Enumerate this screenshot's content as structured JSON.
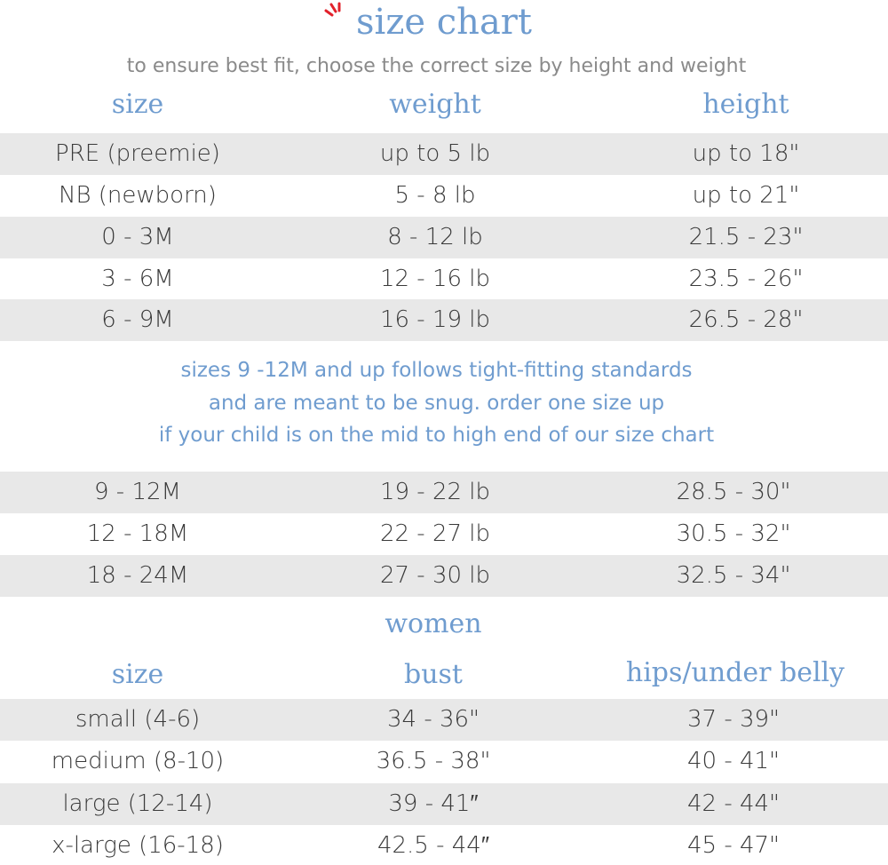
{
  "title": "size chart",
  "subtitle": "to ensure best fit, choose the correct size by height and weight",
  "colors": {
    "accent": "#6f9ccf",
    "band": "#e8e8e8",
    "burst": "#e2212b"
  },
  "baby_headers": {
    "size": "size",
    "weight": "weight",
    "height": "height"
  },
  "baby_rows_a": [
    {
      "size": "PRE (preemie)",
      "weight": "up to 5 lb",
      "height": "up to 18\""
    },
    {
      "size": "NB (newborn)",
      "weight": "5 - 8 lb",
      "height": "up to 21\""
    },
    {
      "size": "0 - 3M",
      "weight": "8 - 12 lb",
      "height": "21.5 - 23\""
    },
    {
      "size": "3 - 6M",
      "weight": "12 - 16 lb",
      "height": "23.5 - 26\""
    },
    {
      "size": "6 - 9M",
      "weight": "16 - 19 lb",
      "height": "26.5 - 28\""
    }
  ],
  "note": [
    "sizes 9 -12M and up follows tight-fitting standards",
    "and are meant to be snug. order one size up",
    "if your child is on the mid to high end of our size chart"
  ],
  "baby_rows_b": [
    {
      "size": "9 - 12M",
      "weight": "19 - 22 lb",
      "height": "28.5 - 30\""
    },
    {
      "size": "12 - 18M",
      "weight": "22 - 27 lb",
      "height": "30.5 - 32\""
    },
    {
      "size": "18 - 24M",
      "weight": "27 - 30 lb",
      "height": "32.5 - 34\""
    }
  ],
  "women": {
    "title": "women",
    "headers": {
      "size": "size",
      "bust": "bust",
      "hips": "hips/under belly"
    },
    "rows": [
      {
        "size": "small (4-6)",
        "bust": "34 - 36\"",
        "hips": "37 - 39\""
      },
      {
        "size": "medium (8-10)",
        "bust": "36.5 - 38\"",
        "hips": "40 - 41\""
      },
      {
        "size": "large (12-14)",
        "bust": "39 - 41″",
        "hips": "42 - 44\""
      },
      {
        "size": "x-large (16-18)",
        "bust": "42.5 - 44″",
        "hips": "45 - 47\""
      }
    ]
  }
}
